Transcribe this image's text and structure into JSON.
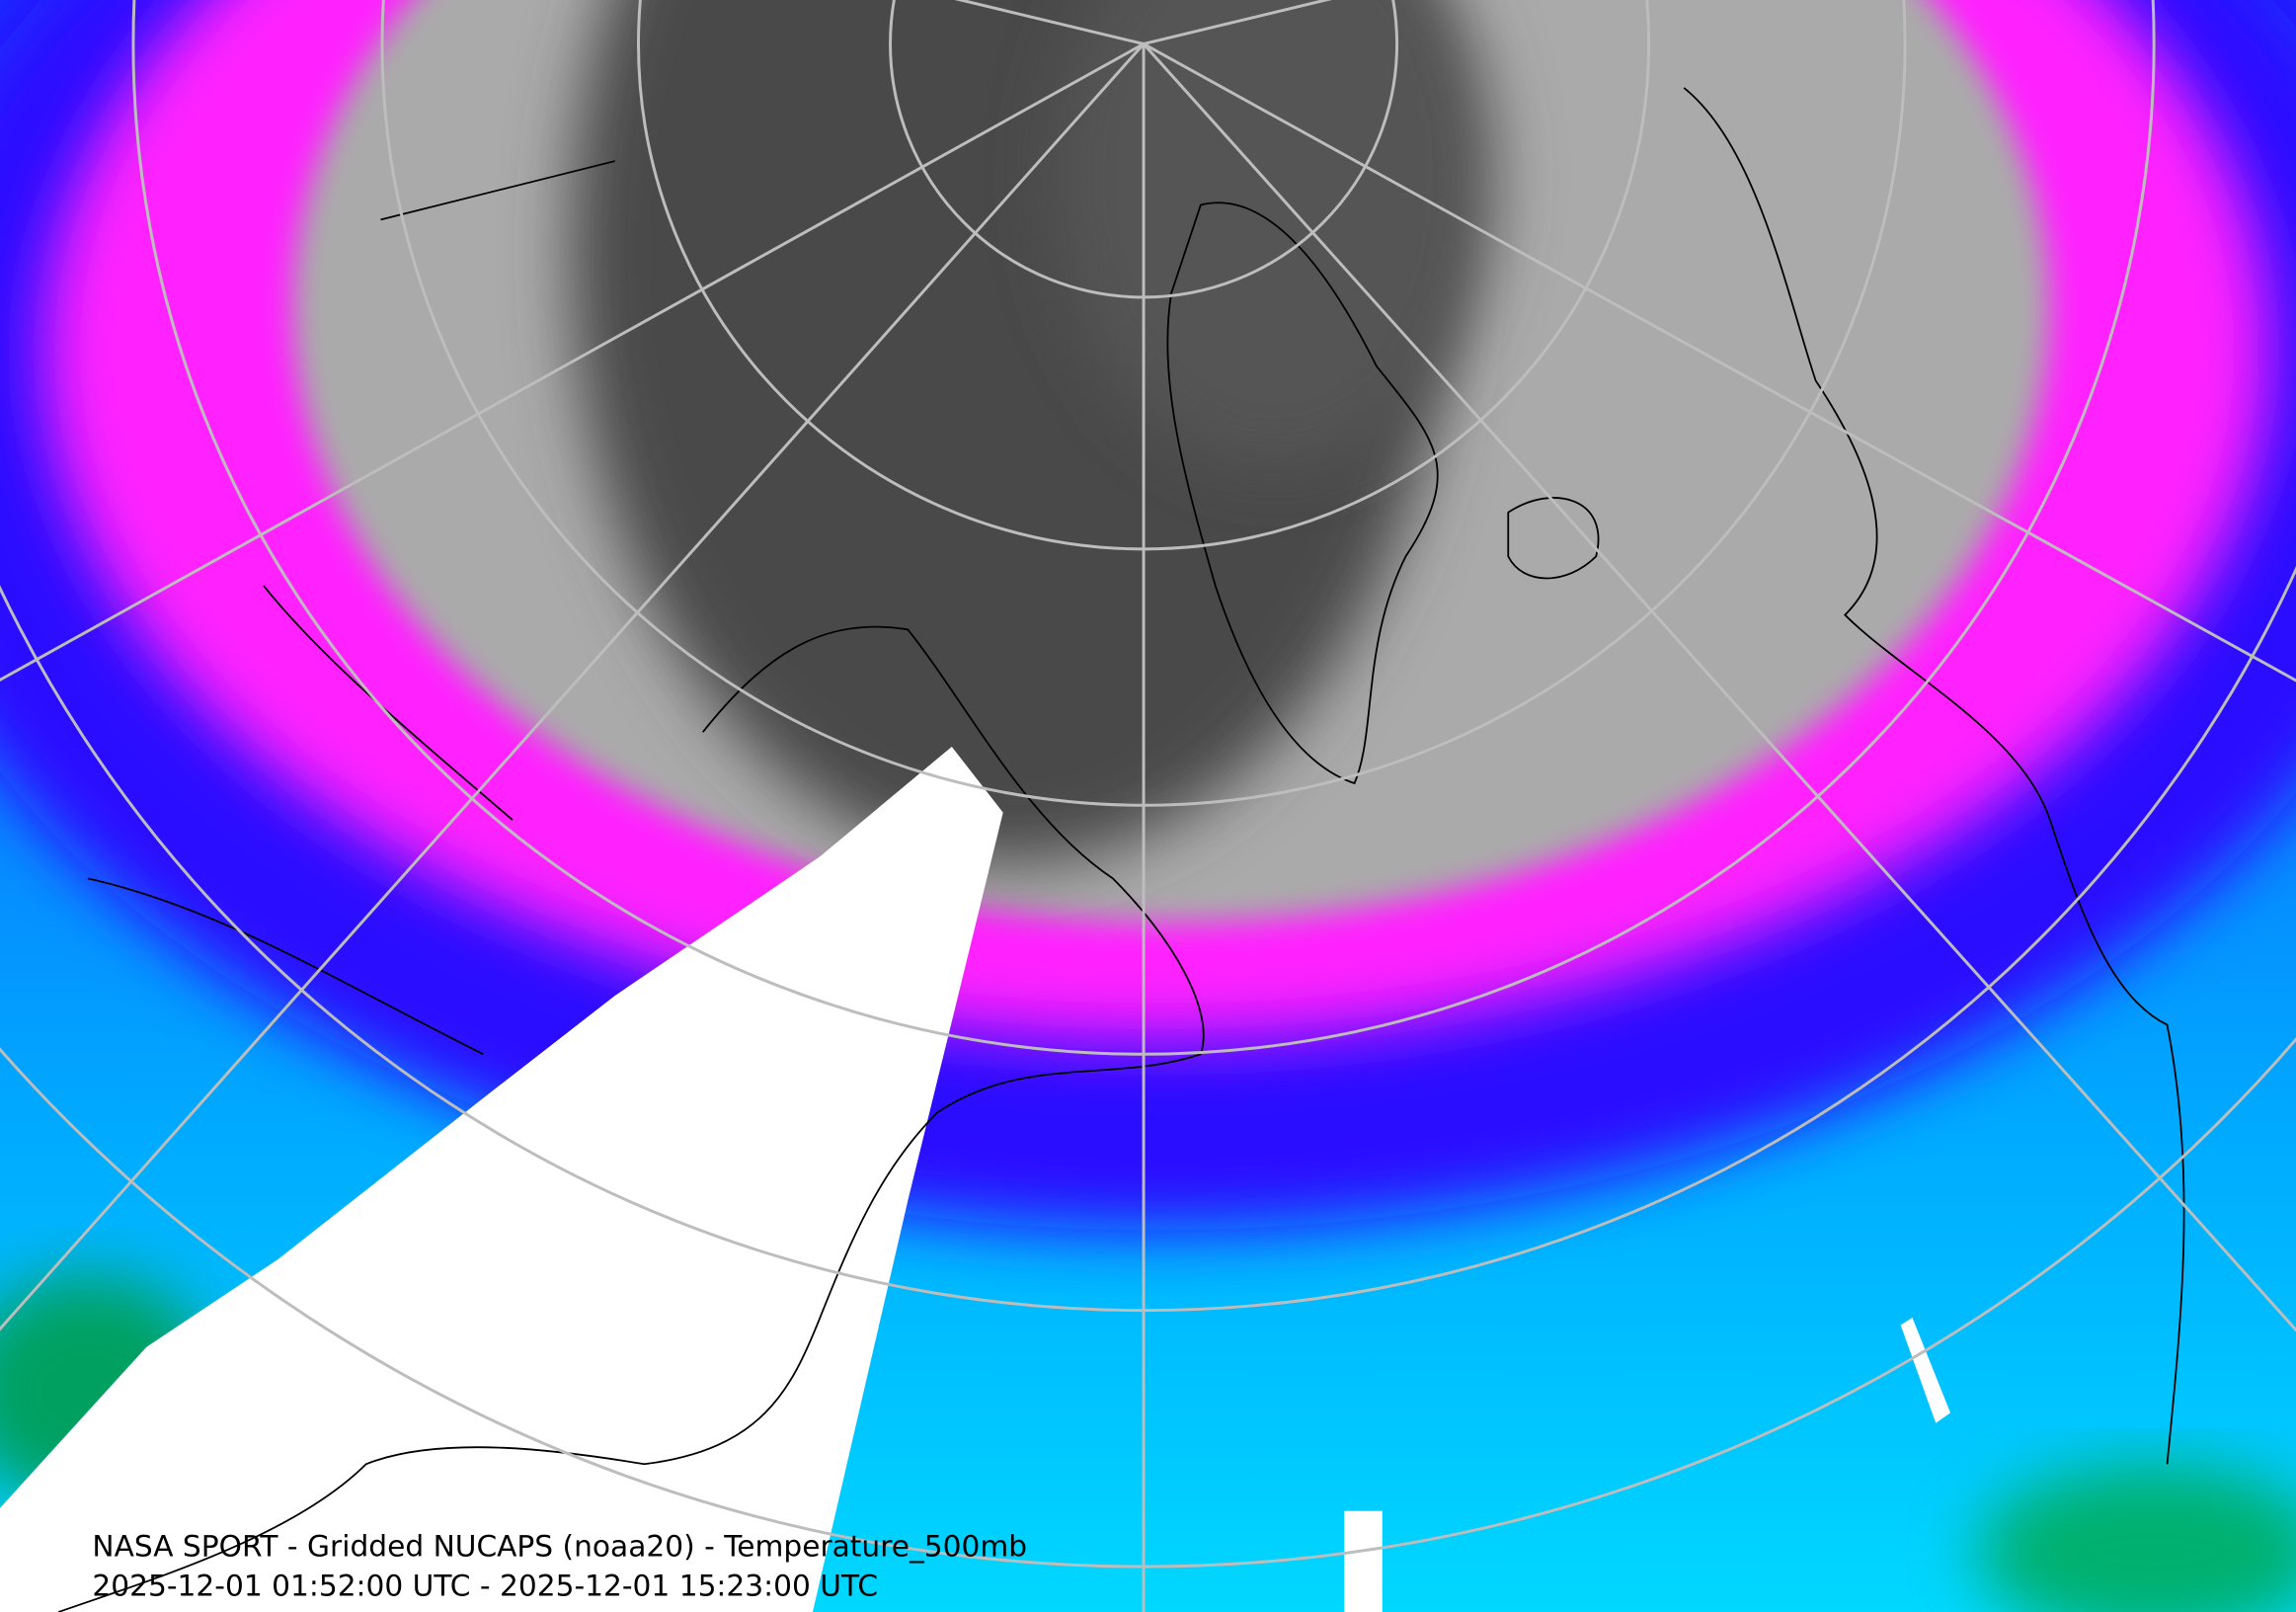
{
  "caption": {
    "title": "NASA SPORT - Gridded NUCAPS (noaa20) - Temperature_500mb",
    "time_range": "2025-12-01 01:52:00 UTC - 2025-12-01 15:23:00 UTC"
  }
}
